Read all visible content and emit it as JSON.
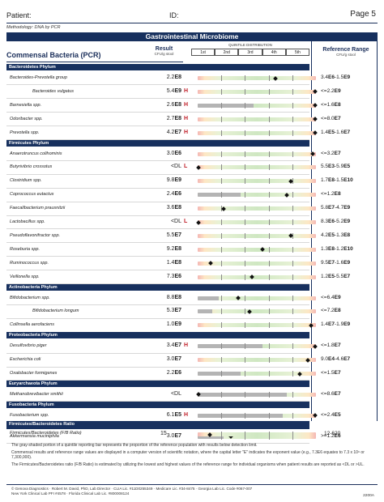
{
  "header": {
    "patient_label": "Patient:",
    "id_label": "ID:",
    "page": "Page 5",
    "methodology": "Methodology: DNA by PCR"
  },
  "section_title": "Gastrointestinal Microbiome",
  "columns": {
    "title": "Commensal Bacteria (PCR)",
    "result": "Result",
    "result_unit": "CFU/g stool",
    "quintile_title": "QUINTILE DISTRIBUTION",
    "quintiles": [
      "1st",
      "2nd",
      "3rd",
      "4th",
      "5th"
    ],
    "reference": "Reference Range",
    "reference_unit": "CFU/g stool"
  },
  "groups": [
    {
      "phylum": "Bacteroidetes Phylum",
      "rows": [
        {
          "name": "Bacteroides-Prevotella group",
          "indent": false,
          "mant": "2.2",
          "exp": "E8",
          "flag": "",
          "ref_lo": "3.4",
          "ref_lo_exp": "E6",
          "ref_sep": "-",
          "ref_hi": "1.5",
          "ref_hi_exp": "E9",
          "marker": 0.66,
          "grey": 0
        },
        {
          "name": "Bacteroides vulgatus",
          "indent": true,
          "mant": "5.4",
          "exp": "E9",
          "flag": "H",
          "ref_lo": "",
          "ref_lo_exp": "",
          "ref_sep": "<=",
          "ref_hi": "2.2",
          "ref_hi_exp": "E9",
          "marker": 0.99,
          "grey": 0
        },
        {
          "name": "Barnesiella spp.",
          "indent": false,
          "mant": "2.6",
          "exp": "E8",
          "flag": "H",
          "ref_lo": "",
          "ref_lo_exp": "",
          "ref_sep": "<=",
          "ref_hi": "1.6",
          "ref_hi_exp": "E8",
          "marker": 0.99,
          "grey": 0.47
        },
        {
          "name": "Odoribacter spp.",
          "indent": false,
          "mant": "2.7",
          "exp": "E8",
          "flag": "H",
          "ref_lo": "",
          "ref_lo_exp": "",
          "ref_sep": "<=",
          "ref_hi": "8.0",
          "ref_hi_exp": "E7",
          "marker": 0.99,
          "grey": 0
        },
        {
          "name": "Prevotella spp.",
          "indent": false,
          "mant": "4.2",
          "exp": "E7",
          "flag": "H",
          "ref_lo": "1.4",
          "ref_lo_exp": "E5",
          "ref_sep": "-",
          "ref_hi": "1.6",
          "ref_hi_exp": "E7",
          "marker": 0.99,
          "grey": 0
        }
      ]
    },
    {
      "phylum": "Firmicutes Phylum",
      "rows": [
        {
          "name": "Anaerotruncus colihominis",
          "indent": false,
          "mant": "3.0",
          "exp": "E6",
          "flag": "",
          "ref_lo": "",
          "ref_lo_exp": "",
          "ref_sep": "<=",
          "ref_hi": "3.2",
          "ref_hi_exp": "E7",
          "marker": 0.97,
          "grey": 0
        },
        {
          "name": "Butyrivibrio crossotus",
          "indent": false,
          "mant": "<DL",
          "exp": "",
          "flag": "L",
          "ref_lo": "5.5",
          "ref_lo_exp": "E3",
          "ref_sep": "-",
          "ref_hi": "5.9",
          "ref_hi_exp": "E5",
          "marker": 0.01,
          "grey": 0
        },
        {
          "name": "Clostridium spp.",
          "indent": false,
          "mant": "9.8",
          "exp": "E9",
          "flag": "",
          "ref_lo": "1.7",
          "ref_lo_exp": "E8",
          "ref_sep": "-",
          "ref_hi": "1.5",
          "ref_hi_exp": "E10",
          "marker": 0.79,
          "grey": 0
        },
        {
          "name": "Coprococcus eutactus",
          "indent": false,
          "mant": "2.4",
          "exp": "E6",
          "flag": "",
          "ref_lo": "",
          "ref_lo_exp": "",
          "ref_sep": "<=",
          "ref_hi": "1.2",
          "ref_hi_exp": "E8",
          "marker": 0.75,
          "grey": 0.36
        },
        {
          "name": "Faecalibacterium prausnitzii",
          "indent": false,
          "mant": "3.6",
          "exp": "E8",
          "flag": "",
          "ref_lo": "5.8",
          "ref_lo_exp": "E7",
          "ref_sep": "-",
          "ref_hi": "4.7",
          "ref_hi_exp": "E9",
          "marker": 0.22,
          "grey": 0
        },
        {
          "name": "Lactobacillus spp.",
          "indent": false,
          "mant": "<DL",
          "exp": "",
          "flag": "L",
          "ref_lo": "8.3",
          "ref_lo_exp": "E6",
          "ref_sep": "-",
          "ref_hi": "5.2",
          "ref_hi_exp": "E9",
          "marker": 0.01,
          "grey": 0
        },
        {
          "name": "Pseudoflavonifractor spp.",
          "indent": false,
          "mant": "5.5",
          "exp": "E7",
          "flag": "",
          "ref_lo": "4.2",
          "ref_lo_exp": "E5",
          "ref_sep": "-",
          "ref_hi": "1.3",
          "ref_hi_exp": "E8",
          "marker": 0.79,
          "grey": 0
        },
        {
          "name": "Roseburia spp.",
          "indent": false,
          "mant": "9.2",
          "exp": "E8",
          "flag": "",
          "ref_lo": "1.3",
          "ref_lo_exp": "E8",
          "ref_sep": "-",
          "ref_hi": "1.2",
          "ref_hi_exp": "E10",
          "marker": 0.55,
          "grey": 0
        },
        {
          "name": "Ruminococcus spp.",
          "indent": false,
          "mant": "1.4",
          "exp": "E8",
          "flag": "",
          "ref_lo": "9.5",
          "ref_lo_exp": "E7",
          "ref_sep": "-",
          "ref_hi": "1.6",
          "ref_hi_exp": "E9",
          "marker": 0.11,
          "grey": 0
        },
        {
          "name": "Veillonella spp.",
          "indent": false,
          "mant": "7.3",
          "exp": "E6",
          "flag": "",
          "ref_lo": "1.2",
          "ref_lo_exp": "E5",
          "ref_sep": "-",
          "ref_hi": "5.5",
          "ref_hi_exp": "E7",
          "marker": 0.46,
          "grey": 0
        }
      ]
    },
    {
      "phylum": "Actinobacteria Phylum",
      "rows": [
        {
          "name": "Bifidobacterium spp.",
          "indent": false,
          "mant": "8.8",
          "exp": "E8",
          "flag": "",
          "ref_lo": "",
          "ref_lo_exp": "",
          "ref_sep": "<=",
          "ref_hi": "6.4",
          "ref_hi_exp": "E9",
          "marker": 0.34,
          "grey": 0.18
        },
        {
          "name": "Bifidobacterium longum",
          "indent": true,
          "mant": "5.3",
          "exp": "E7",
          "flag": "",
          "ref_lo": "",
          "ref_lo_exp": "",
          "ref_sep": "<=",
          "ref_hi": "7.2",
          "ref_hi_exp": "E8",
          "marker": 0.44,
          "grey": 0.12
        },
        {
          "name": "Collinsella aerofaciens",
          "indent": false,
          "mant": "1.0",
          "exp": "E9",
          "flag": "",
          "ref_lo": "1.4",
          "ref_lo_exp": "E7",
          "ref_sep": "-",
          "ref_hi": "1.9",
          "ref_hi_exp": "E9",
          "marker": 0.96,
          "grey": 0
        }
      ]
    },
    {
      "phylum": "Proteobacteria Phylum",
      "rows": [
        {
          "name": "Desulfovibrio piger",
          "indent": false,
          "mant": "3.4",
          "exp": "E7",
          "flag": "H",
          "ref_lo": "",
          "ref_lo_exp": "",
          "ref_sep": "<=",
          "ref_hi": "1.8",
          "ref_hi_exp": "E7",
          "marker": 0.99,
          "grey": 0.55
        },
        {
          "name": "Escherichia coli",
          "indent": false,
          "mant": "3.0",
          "exp": "E7",
          "flag": "",
          "ref_lo": "9.0",
          "ref_lo_exp": "E4",
          "ref_sep": "-",
          "ref_hi": "4.6",
          "ref_hi_exp": "E7",
          "marker": 0.93,
          "grey": 0
        },
        {
          "name": "Oxalobacter formigenes",
          "indent": false,
          "mant": "2.2",
          "exp": "E6",
          "flag": "",
          "ref_lo": "",
          "ref_lo_exp": "",
          "ref_sep": "<=",
          "ref_hi": "1.5",
          "ref_hi_exp": "E7",
          "marker": 0.86,
          "grey": 0.36
        }
      ]
    },
    {
      "phylum": "Euryarchaeota Phylum",
      "rows": [
        {
          "name": "Methanobrevibacter smithii",
          "indent": false,
          "mant": "<DL",
          "exp": "",
          "flag": "",
          "ref_lo": "",
          "ref_lo_exp": "",
          "ref_sep": "<=",
          "ref_hi": "8.6",
          "ref_hi_exp": "E7",
          "marker": 0.01,
          "grey": 0.75
        }
      ]
    },
    {
      "phylum": "Fusobacteria Phylum",
      "rows": [
        {
          "name": "Fusobacterium spp.",
          "indent": false,
          "mant": "6.1",
          "exp": "E5",
          "flag": "H",
          "ref_lo": "",
          "ref_lo_exp": "",
          "ref_sep": "<=",
          "ref_hi": "2.4",
          "ref_hi_exp": "E5",
          "marker": 0.99,
          "grey": 0.72
        }
      ]
    },
    {
      "phylum": "Verrucomicrobia Phylum",
      "rows": [
        {
          "name": "Akkermansia muciniphila",
          "indent": false,
          "mant": "3.0",
          "exp": "E7",
          "flag": "",
          "ref_lo": "",
          "ref_lo_exp": "",
          "ref_sep": ">=",
          "ref_hi": "1.2",
          "ref_hi_exp": "E6",
          "marker": 0.28,
          "grey": 0.22
        }
      ]
    }
  ],
  "ratio": {
    "title": "Firmicutes/Bacteroidetes Ratio",
    "name": "Firmicutes/Bacteroidetes (F/B Ratio)",
    "value": "15",
    "reference": "12-620",
    "marker": 0.1
  },
  "notes": [
    "The gray-shaded portion of a quintile reporting bar represents the proportion of the reference population with results below detection limit.",
    "Commensal results and reference range values are displayed in a computer version of scientific notation, where the capital letter \"E\" indicates the exponent value (e.g., 7.3E6 equates to 7.3 x 10⁶ or 7,300,000).",
    "The Firmicutes/Bacteroidetes ratio (F/B Ratio) is estimated by utilizing the lowest and highest values of the reference range for individual organisms when patient results are reported as <DL or >UL."
  ],
  "footer": {
    "line1": "© Genova Diagnostics · Robert M. David, PhD, Lab Director · CLIA Lic. #11D0255349 · Medicare Lic. #34-8475 · Georgia Lab Lic. Code #067-007",
    "line2": "New York Clinical Lab PFI #4578 · Florida Clinical Lab Lic. #800008124",
    "code": "2200A"
  },
  "colors": {
    "navy": "#17305e",
    "high_low_flag": "#c0202a",
    "grey_fill": "#b4b4b4",
    "in_range": "#cfe7c2",
    "out_of_range": "#f4b7b4"
  }
}
